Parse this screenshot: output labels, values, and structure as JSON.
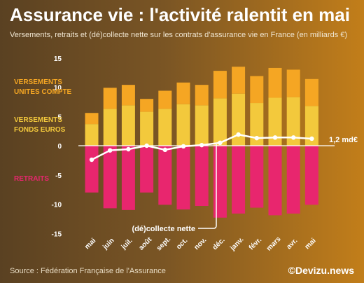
{
  "header": {
    "title": "Assurance vie : l'activité ralentit en mai",
    "subtitle": "Versements, retraits et (dé)collecte nette sur les contrats d'assurance vie en France (en milliards €)"
  },
  "footer": {
    "source": "Source : Fédération Française de l'Assurance",
    "brand": "©Devizu.news"
  },
  "labels": {
    "uc": [
      "VERSEMENTS",
      "UNITES COMPTE"
    ],
    "fe": [
      "VERSEMENTS",
      "FONDS EUROS"
    ],
    "retraits": "RETRAITS",
    "net": "(dé)collecte nette",
    "last_value": "1,2 md€"
  },
  "colors": {
    "uc": "#f5a623",
    "fe": "#f3c93c",
    "retraits": "#e8266e",
    "net": "#ffffff",
    "uc_label": "#f5a623",
    "fe_label": "#f3c93c",
    "retraits_label": "#e8266e"
  },
  "chart_data": {
    "type": "bar",
    "stacked": true,
    "categories": [
      "mai",
      "juin",
      "juil.",
      "août",
      "sept.",
      "oct.",
      "nov.",
      "déc.",
      "janv.",
      "févr.",
      "mars",
      "avr.",
      "mai"
    ],
    "series": [
      {
        "key": "fe",
        "name": "VERSEMENTS FONDS EUROS",
        "values": [
          3.7,
          6.3,
          6.9,
          5.8,
          6.3,
          7.1,
          6.9,
          8.1,
          8.9,
          7.3,
          8.2,
          8.3,
          6.8
        ]
      },
      {
        "key": "uc",
        "name": "VERSEMENTS UNITES COMPTE",
        "values": [
          1.9,
          3.6,
          3.5,
          2.2,
          3.1,
          3.7,
          3.5,
          4.7,
          4.6,
          4.6,
          5.1,
          4.7,
          4.6
        ]
      },
      {
        "key": "retraits",
        "name": "RETRAITS",
        "values": [
          -8.0,
          -10.7,
          -11.0,
          -8.0,
          -10.1,
          -10.9,
          -10.3,
          -12.3,
          -11.6,
          -10.6,
          -11.9,
          -11.6,
          -10.1
        ]
      }
    ],
    "net": {
      "name": "(dé)collecte nette",
      "values": [
        -2.4,
        -0.8,
        -0.6,
        0.0,
        -0.7,
        -0.1,
        0.1,
        0.5,
        1.9,
        1.3,
        1.4,
        1.4,
        1.2
      ]
    },
    "ylim": [
      -15,
      15
    ],
    "yticks": [
      15,
      10,
      5,
      0,
      -5,
      -10,
      -15
    ],
    "grid": false
  }
}
